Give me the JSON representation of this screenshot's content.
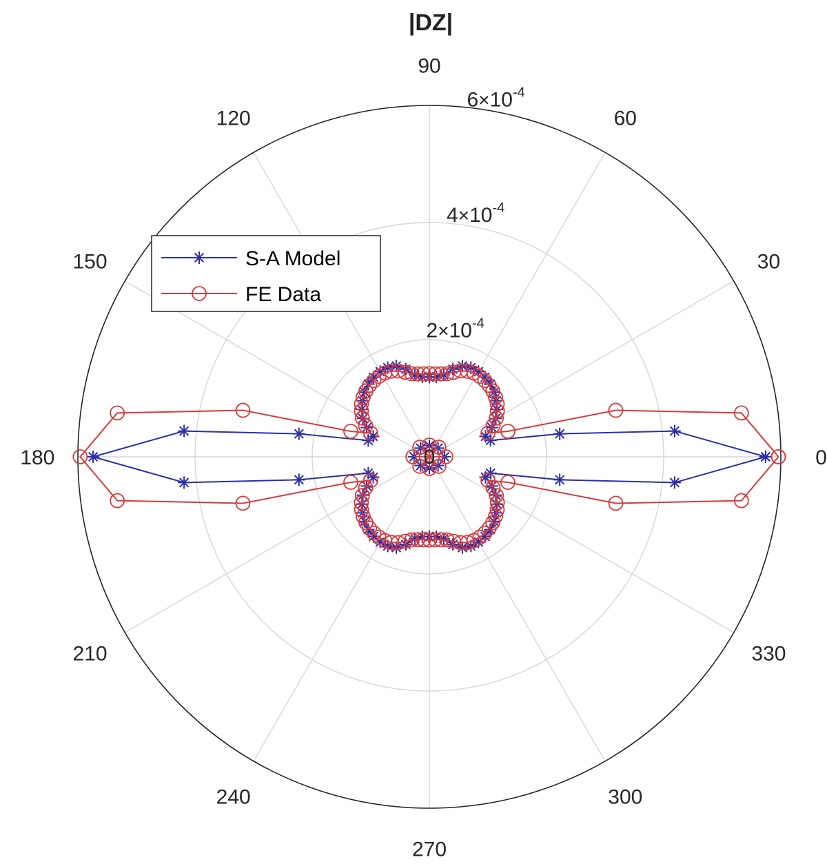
{
  "chart_data": {
    "type": "polar",
    "title": "|DZ|",
    "theta_unit": "degrees",
    "theta_ticks": [
      0,
      30,
      60,
      90,
      120,
      150,
      180,
      210,
      240,
      270,
      300,
      330
    ],
    "theta_tick_labels": [
      "0",
      "30",
      "60",
      "90",
      "120",
      "150",
      "180",
      "210",
      "240",
      "270",
      "300",
      "330"
    ],
    "r_ticks": [
      0,
      0.0002,
      0.0004,
      0.0006
    ],
    "r_tick_labels": [
      {
        "mantissa": "2",
        "times": "×",
        "base": "10",
        "exp": "-4"
      },
      {
        "mantissa": "4",
        "times": "×",
        "base": "10",
        "exp": "-4"
      },
      {
        "mantissa": "6",
        "times": "×",
        "base": "10",
        "exp": "-4"
      }
    ],
    "center_label": "0",
    "rlim": [
      0,
      0.0006
    ],
    "grid": true,
    "legend": {
      "placement": "upper-left"
    },
    "series": [
      {
        "name": "S-A Model",
        "color": "#2b2fa8",
        "marker": "asterisk",
        "points": [
          [
            0,
            0.000574
          ],
          [
            6,
            0.000421
          ],
          [
            10,
            0.000226
          ],
          [
            15,
            0.000108
          ],
          [
            20,
            0.000102
          ],
          [
            25,
            0.000118
          ],
          [
            30,
            0.000131
          ],
          [
            35,
            0.000141
          ],
          [
            40,
            0.000149
          ],
          [
            45,
            0.000156
          ],
          [
            50,
            0.000162
          ],
          [
            55,
            0.000166
          ],
          [
            60,
            0.000168
          ],
          [
            65,
            0.000168
          ],
          [
            70,
            0.000165
          ],
          [
            75,
            0.000155
          ],
          [
            80,
            0.000142
          ],
          [
            85,
            0.000137
          ],
          [
            90,
            0.000136
          ],
          [
            95,
            0.000137
          ],
          [
            100,
            0.000142
          ],
          [
            105,
            0.000155
          ],
          [
            110,
            0.000165
          ],
          [
            115,
            0.000168
          ],
          [
            120,
            0.000168
          ],
          [
            125,
            0.000166
          ],
          [
            130,
            0.000162
          ],
          [
            135,
            0.000156
          ],
          [
            140,
            0.000149
          ],
          [
            145,
            0.000141
          ],
          [
            150,
            0.000131
          ],
          [
            155,
            0.000118
          ],
          [
            160,
            0.000102
          ],
          [
            165,
            0.000108
          ],
          [
            170,
            0.000226
          ],
          [
            174,
            0.000421
          ],
          [
            180,
            0.000574
          ],
          [
            186,
            0.000421
          ],
          [
            190,
            0.000226
          ],
          [
            195,
            0.000108
          ],
          [
            200,
            0.000102
          ],
          [
            205,
            0.000118
          ],
          [
            210,
            0.000131
          ],
          [
            215,
            0.000141
          ],
          [
            220,
            0.000149
          ],
          [
            225,
            0.000156
          ],
          [
            230,
            0.000162
          ],
          [
            235,
            0.000166
          ],
          [
            240,
            0.000168
          ],
          [
            245,
            0.000168
          ],
          [
            250,
            0.000165
          ],
          [
            255,
            0.000155
          ],
          [
            260,
            0.000142
          ],
          [
            265,
            0.000137
          ],
          [
            270,
            0.000136
          ],
          [
            275,
            0.000137
          ],
          [
            280,
            0.000142
          ],
          [
            285,
            0.000155
          ],
          [
            290,
            0.000165
          ],
          [
            295,
            0.000168
          ],
          [
            300,
            0.000168
          ],
          [
            305,
            0.000166
          ],
          [
            310,
            0.000162
          ],
          [
            315,
            0.000156
          ],
          [
            320,
            0.000149
          ],
          [
            325,
            0.000141
          ],
          [
            330,
            0.000131
          ],
          [
            335,
            0.000118
          ],
          [
            340,
            0.000102
          ],
          [
            345,
            0.000108
          ],
          [
            350,
            0.000226
          ],
          [
            354,
            0.000421
          ],
          [
            360,
            0.000574
          ]
        ],
        "inner_points": [
          [
            0,
            2.6e-05
          ],
          [
            45,
            2.1e-05
          ],
          [
            90,
            1.9e-05
          ],
          [
            135,
            2.1e-05
          ],
          [
            180,
            2.6e-05
          ],
          [
            225,
            2.1e-05
          ],
          [
            270,
            1.9e-05
          ],
          [
            315,
            2.1e-05
          ]
        ]
      },
      {
        "name": "FE Data",
        "color": "#d9383a",
        "marker": "circle",
        "points": [
          [
            0,
            0.000596
          ],
          [
            8,
            0.000538
          ],
          [
            14,
            0.000328
          ],
          [
            18,
            0.000141
          ],
          [
            22,
            0.000108
          ],
          [
            26,
            0.000121
          ],
          [
            30,
            0.000132
          ],
          [
            34,
            0.00014
          ],
          [
            38,
            0.000147
          ],
          [
            42,
            0.000152
          ],
          [
            46,
            0.000156
          ],
          [
            50,
            0.000159
          ],
          [
            54,
            0.000161
          ],
          [
            58,
            0.000162
          ],
          [
            62,
            0.000162
          ],
          [
            66,
            0.00016
          ],
          [
            70,
            0.000156
          ],
          [
            74,
            0.00015
          ],
          [
            78,
            0.000145
          ],
          [
            82,
            0.000143
          ],
          [
            86,
            0.000142
          ],
          [
            90,
            0.000142
          ],
          [
            94,
            0.000142
          ],
          [
            98,
            0.000143
          ],
          [
            102,
            0.000145
          ],
          [
            106,
            0.00015
          ],
          [
            110,
            0.000156
          ],
          [
            114,
            0.00016
          ],
          [
            118,
            0.000162
          ],
          [
            122,
            0.000162
          ],
          [
            126,
            0.000161
          ],
          [
            130,
            0.000159
          ],
          [
            134,
            0.000156
          ],
          [
            138,
            0.000152
          ],
          [
            142,
            0.000147
          ],
          [
            146,
            0.00014
          ],
          [
            150,
            0.000132
          ],
          [
            154,
            0.000121
          ],
          [
            158,
            0.000108
          ],
          [
            162,
            0.000141
          ],
          [
            166,
            0.000328
          ],
          [
            172,
            0.000538
          ],
          [
            180,
            0.000596
          ],
          [
            188,
            0.000538
          ],
          [
            194,
            0.000328
          ],
          [
            198,
            0.000141
          ],
          [
            202,
            0.000108
          ],
          [
            206,
            0.000121
          ],
          [
            210,
            0.000132
          ],
          [
            214,
            0.00014
          ],
          [
            218,
            0.000147
          ],
          [
            222,
            0.000152
          ],
          [
            226,
            0.000156
          ],
          [
            230,
            0.000159
          ],
          [
            234,
            0.000161
          ],
          [
            238,
            0.000162
          ],
          [
            242,
            0.000162
          ],
          [
            246,
            0.00016
          ],
          [
            250,
            0.000156
          ],
          [
            254,
            0.00015
          ],
          [
            258,
            0.000145
          ],
          [
            262,
            0.000143
          ],
          [
            266,
            0.000142
          ],
          [
            270,
            0.000142
          ],
          [
            274,
            0.000142
          ],
          [
            278,
            0.000143
          ],
          [
            282,
            0.000145
          ],
          [
            286,
            0.00015
          ],
          [
            290,
            0.000156
          ],
          [
            294,
            0.00016
          ],
          [
            298,
            0.000162
          ],
          [
            302,
            0.000162
          ],
          [
            306,
            0.000161
          ],
          [
            310,
            0.000159
          ],
          [
            314,
            0.000156
          ],
          [
            318,
            0.000152
          ],
          [
            322,
            0.000147
          ],
          [
            326,
            0.00014
          ],
          [
            330,
            0.000132
          ],
          [
            334,
            0.000121
          ],
          [
            338,
            0.000108
          ],
          [
            342,
            0.000141
          ],
          [
            346,
            0.000328
          ],
          [
            352,
            0.000538
          ],
          [
            360,
            0.000596
          ]
        ],
        "inner_points": [
          [
            0,
            2.8e-05
          ],
          [
            45,
            2.3e-05
          ],
          [
            90,
            2e-05
          ],
          [
            135,
            2.3e-05
          ],
          [
            180,
            2.8e-05
          ],
          [
            225,
            2.3e-05
          ],
          [
            270,
            2e-05
          ],
          [
            315,
            2.3e-05
          ]
        ]
      }
    ]
  }
}
